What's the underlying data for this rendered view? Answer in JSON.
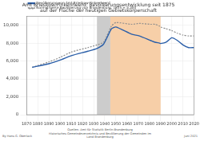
{
  "chart_data": {
    "type": "line",
    "title": [
      "Amt Brieskow-Finkenheerd: Bevölkerungsentwicklung seit 1875",
      "auf der Fläche der heutigen Gebietskörperschaft"
    ],
    "series": [
      {
        "name": "Bevölkerung von Amt Brieskow-Finkenheerd",
        "color": "#2a5ea8",
        "line_style": "solid",
        "x": [
          1875,
          1890,
          1900,
          1910,
          1925,
          1933,
          1939,
          1946,
          1950,
          1964,
          1971,
          1981,
          1985,
          1989,
          1990,
          1995,
          2000,
          2005,
          2010,
          2015,
          2020
        ],
        "values": [
          5300,
          5700,
          6100,
          6600,
          7100,
          7400,
          7900,
          9600,
          9800,
          9000,
          8800,
          8300,
          8100,
          8000,
          7950,
          8100,
          8600,
          8300,
          7800,
          7500,
          7500
        ]
      },
      {
        "name": "Normalisierte Bevölkerung von Brandenburg, 1875 = 5.300",
        "color": "#8c8c8c",
        "line_style": "dashed",
        "x": [
          1875,
          1890,
          1900,
          1910,
          1925,
          1933,
          1939,
          1946,
          1950,
          1964,
          1971,
          1981,
          1985,
          1989,
          1990,
          1995,
          2000,
          2005,
          2010,
          2015,
          2020
        ],
        "values": [
          5300,
          5900,
          6400,
          7000,
          7500,
          7800,
          8100,
          9900,
          10300,
          10100,
          10200,
          10100,
          10100,
          9900,
          9800,
          9600,
          9400,
          9100,
          8900,
          8800,
          8800
        ]
      }
    ],
    "periods": [
      {
        "from": 1933,
        "to": 1945,
        "color": "#cccccc"
      },
      {
        "from": 1945,
        "to": 1990,
        "color": "#f7cfa8"
      }
    ],
    "xlim": [
      1870,
      2020
    ],
    "xticks": [
      1870,
      1880,
      1890,
      1900,
      1910,
      1920,
      1930,
      1940,
      1950,
      1960,
      1970,
      1980,
      1990,
      2000,
      2010,
      2020
    ],
    "ylim": [
      0,
      11000
    ],
    "yticks": [
      0,
      {
        "value": 2000,
        "label": "2,000"
      },
      {
        "value": 4000,
        "label": "4,000"
      },
      {
        "value": 6000,
        "label": "6,000"
      },
      {
        "value": 8000,
        "label": "8,000"
      },
      {
        "value": 10000,
        "label": "10,000"
      }
    ],
    "grid": true,
    "legend": "upper left",
    "footer": {
      "left": "By Hans G. Oberlack",
      "center": [
        "Quellen: Amt für Statistik Berlin-Brandenburg",
        "Historisches Gemeindeverzeichnis und Bevölkerung der Gemeinden im Land Brandenburg"
      ],
      "right": "Juni 2021"
    }
  }
}
